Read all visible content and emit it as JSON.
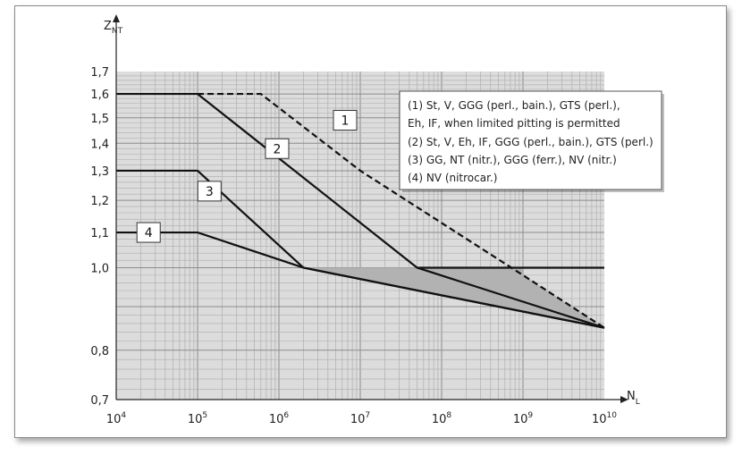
{
  "chart_data": {
    "type": "line",
    "x_axis": {
      "label_main": "N",
      "label_sub": "L",
      "scale": "log",
      "range": [
        10000,
        10000000000
      ],
      "ticks": [
        {
          "value": 10000,
          "base": "10",
          "exp": "4"
        },
        {
          "value": 100000,
          "base": "10",
          "exp": "5"
        },
        {
          "value": 1000000,
          "base": "10",
          "exp": "6"
        },
        {
          "value": 10000000,
          "base": "10",
          "exp": "7"
        },
        {
          "value": 100000000,
          "base": "10",
          "exp": "8"
        },
        {
          "value": 1000000000,
          "base": "10",
          "exp": "9"
        },
        {
          "value": 10000000000,
          "base": "10",
          "exp": "10"
        }
      ]
    },
    "y_axis": {
      "label_main": "Z",
      "label_sub": "NT",
      "scale": "log",
      "range": [
        0.7,
        1.7
      ],
      "ticks": [
        {
          "value": 0.7,
          "label": "0,7"
        },
        {
          "value": 0.8,
          "label": "0,8"
        },
        {
          "value": 1.0,
          "label": "1,0"
        },
        {
          "value": 1.1,
          "label": "1,1"
        },
        {
          "value": 1.2,
          "label": "1,2"
        },
        {
          "value": 1.3,
          "label": "1,3"
        },
        {
          "value": 1.4,
          "label": "1,4"
        },
        {
          "value": 1.5,
          "label": "1,5"
        },
        {
          "value": 1.6,
          "label": "1,6"
        },
        {
          "value": 1.7,
          "label": "1,7"
        }
      ]
    },
    "grid": true,
    "series": [
      {
        "label": "1",
        "style": "dashed",
        "points": [
          [
            100000,
            1.6
          ],
          [
            600000,
            1.6
          ],
          [
            10000000,
            1.3
          ],
          [
            1000000000,
            0.98
          ],
          [
            10000000000,
            0.85
          ]
        ]
      },
      {
        "label": "2",
        "style": "solid",
        "points": [
          [
            10000,
            1.6
          ],
          [
            100000,
            1.6
          ],
          [
            50000000,
            1.0
          ],
          [
            10000000000,
            1.0
          ]
        ]
      },
      {
        "label": "2",
        "style": "solid",
        "points": [
          [
            50000000,
            1.0
          ],
          [
            10000000000,
            0.85
          ]
        ]
      },
      {
        "label": "3",
        "style": "solid",
        "points": [
          [
            10000,
            1.3
          ],
          [
            100000,
            1.3
          ],
          [
            2000000,
            1.0
          ],
          [
            10000000000,
            0.85
          ]
        ]
      },
      {
        "label": "4",
        "style": "solid",
        "points": [
          [
            10000,
            1.1
          ],
          [
            100000,
            1.1
          ],
          [
            2000000,
            1.0
          ],
          [
            10000000000,
            0.85
          ]
        ]
      }
    ],
    "curve_labels": [
      {
        "text": "1",
        "x": 6500000,
        "y": 1.49
      },
      {
        "text": "2",
        "x": 950000,
        "y": 1.38
      },
      {
        "text": "3",
        "x": 140000,
        "y": 1.23
      },
      {
        "text": "4",
        "x": 25000,
        "y": 1.1
      }
    ],
    "legend": {
      "placement": "top-right",
      "entries": [
        "(1) St, V, GGG (perl., bain.), GTS (perl.),",
        "Eh, IF, when limited pitting is permitted",
        "(2) St, V, Eh, IF, GGG (perl., bain.), GTS (perl.)",
        "(3) GG, NT (nitr.), GGG (ferr.), NV (nitr.)",
        "(4) NV (nitrocar.)"
      ]
    },
    "colors": {
      "plot_background": "#dcdcdc",
      "shaded_region": "#b2b2b2",
      "grid_major": "#8c8c8c",
      "grid_minor": "#b4b4b4",
      "line": "#111111"
    }
  }
}
